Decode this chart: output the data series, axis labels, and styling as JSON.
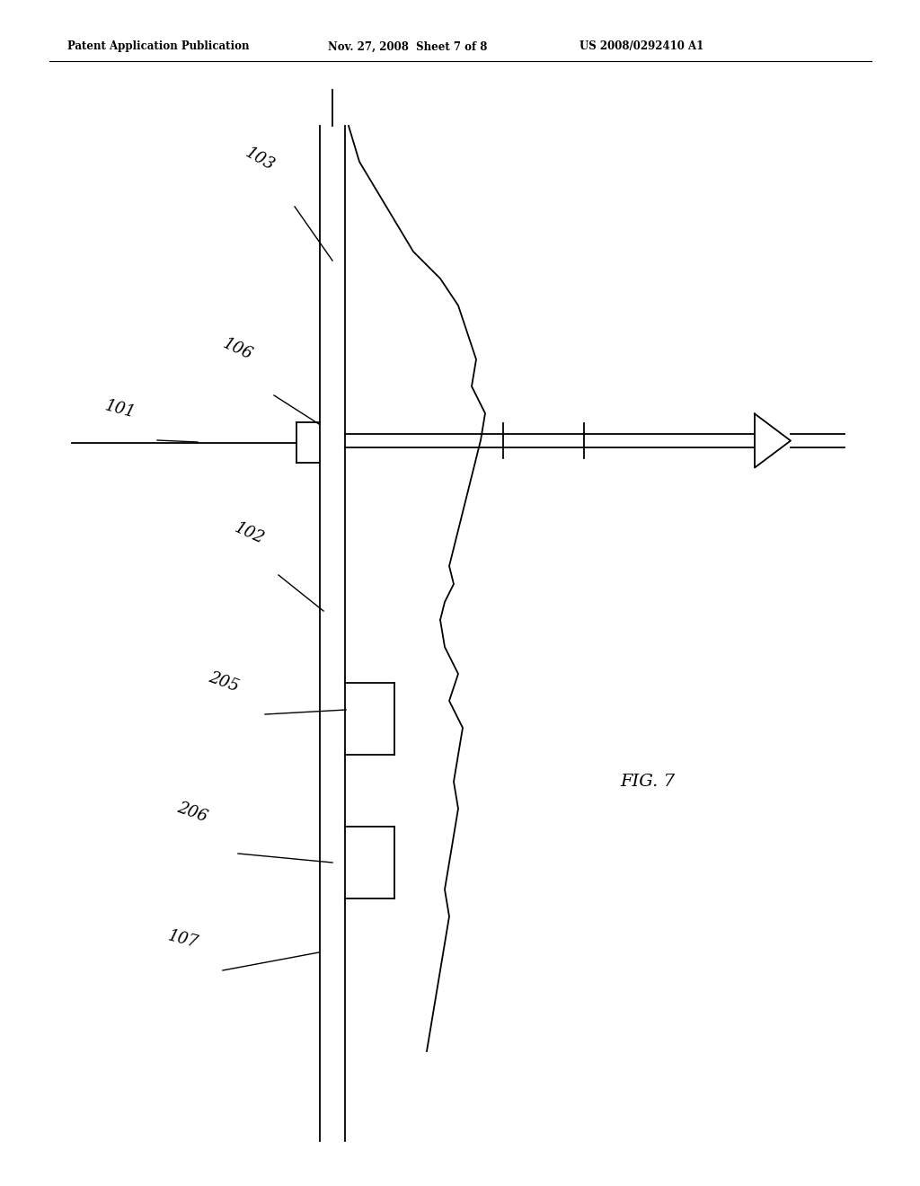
{
  "bg_color": "#ffffff",
  "header_text": "Patent Application Publication",
  "header_date": "Nov. 27, 2008  Sheet 7 of 8",
  "header_patent": "US 2008/0292410 A1",
  "fig_label": "FIG. 7"
}
